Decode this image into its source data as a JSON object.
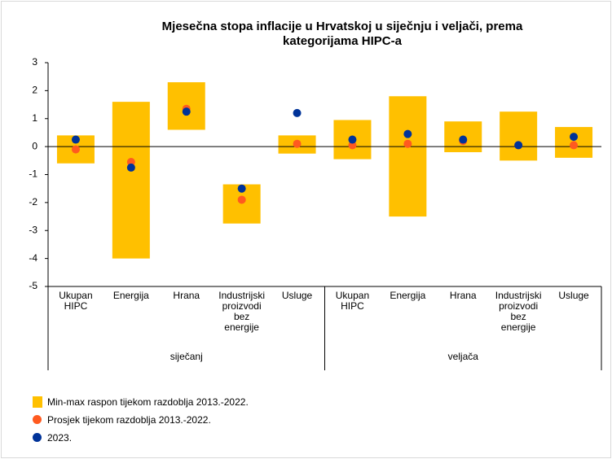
{
  "chart_data": {
    "type": "range-dot",
    "title": "Mjesečna stopa inflacije u Hrvatskoj u siječnju i veljači, prema kategorijama HIPC-a",
    "categories": [
      "Ukupan HIPC",
      "Energija",
      "Hrana",
      "Industrijski proizvodi bez energije",
      "Usluge",
      "Ukupan HIPC",
      "Energija",
      "Hrana",
      "Industrijski proizvodi bez energije",
      "Usluge"
    ],
    "groups": [
      "siječanj",
      "veljača"
    ],
    "range": {
      "name": "Min-max raspon tijekom razdoblja 2013.-2022.",
      "color": "#ffc000",
      "low": [
        -0.6,
        -4.0,
        0.6,
        -2.75,
        -0.25,
        -0.45,
        -2.5,
        -0.2,
        -0.5,
        -0.4
      ],
      "high": [
        0.4,
        1.6,
        2.3,
        -1.35,
        0.4,
        0.95,
        1.8,
        0.9,
        1.25,
        0.7
      ]
    },
    "series": [
      {
        "name": "Prosjek tijekom razdoblja 2013.-2022.",
        "color": "#ff5a1f",
        "values": [
          -0.1,
          -0.55,
          1.35,
          -1.9,
          0.1,
          0.05,
          0.1,
          0.2,
          0.05,
          0.05
        ]
      },
      {
        "name": "2023.",
        "color": "#003399",
        "values": [
          0.25,
          -0.75,
          1.25,
          -1.5,
          1.2,
          0.25,
          0.45,
          0.25,
          0.05,
          0.35
        ]
      }
    ],
    "ylim": [
      -5,
      3
    ],
    "yticks": [
      -5,
      -4,
      -3,
      -2,
      -1,
      0,
      1,
      2,
      3
    ]
  }
}
